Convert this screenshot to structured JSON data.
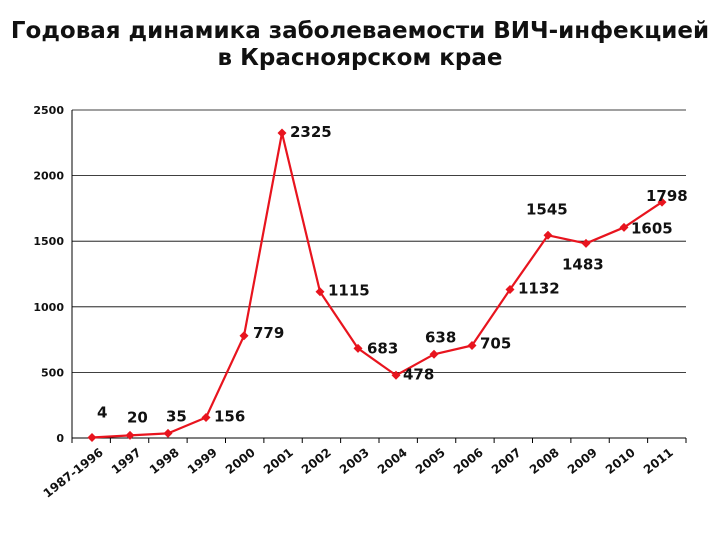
{
  "chart_data": {
    "type": "line",
    "title_line1": "Годовая динамика заболеваемости ВИЧ-инфекцией",
    "title_line2": "в Красноярском крае",
    "categories": [
      "1987-1996",
      "1997",
      "1998",
      "1999",
      "2000",
      "2001",
      "2002",
      "2003",
      "2004",
      "2005",
      "2006",
      "2007",
      "2008",
      "2009",
      "2010",
      "2011"
    ],
    "values": [
      4,
      20,
      35,
      156,
      779,
      2325,
      1115,
      683,
      478,
      638,
      705,
      1132,
      1545,
      1483,
      1605,
      1798
    ],
    "ylim": [
      0,
      2500
    ],
    "yticks": [
      0,
      500,
      1000,
      1500,
      2000,
      2500
    ],
    "grid": true,
    "colors": {
      "line": "#e8141e",
      "grid": "#000000"
    }
  }
}
